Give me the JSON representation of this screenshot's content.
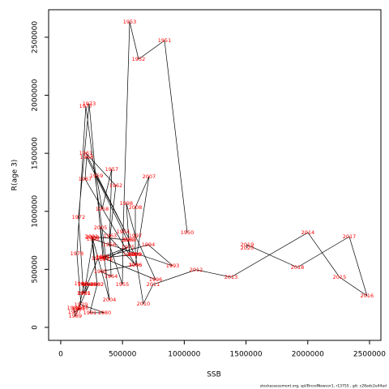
{
  "chart_data": {
    "type": "labeled-path",
    "x_label": "SSB",
    "y_label": "R(age 3)",
    "footer": "stockassessment.org, spl/BrcodNewcor1, r13755 , git: c28adc2e44ad",
    "point_labels": [
      "1950",
      "1951",
      "1952",
      "1953",
      "1954",
      "1955",
      "1956",
      "1957",
      "1958",
      "1959",
      "1960",
      "1961",
      "1962",
      "1963",
      "1964",
      "1965",
      "1966",
      "1967",
      "1968",
      "1969",
      "1970",
      "1971",
      "1972",
      "1973",
      "1974",
      "1975",
      "1976",
      "1977",
      "1978",
      "1979",
      "1980",
      "1981",
      "1982",
      "1983",
      "1984",
      "1985",
      "1986",
      "1987",
      "1988",
      "1989",
      "1990",
      "1991",
      "1992",
      "1993",
      "1994",
      "1995",
      "1996",
      "1997",
      "1998",
      "1999",
      "2000",
      "2001",
      "2002",
      "2003",
      "2004",
      "2005",
      "2006",
      "2007",
      "2008",
      "2009",
      "2010",
      "2011",
      "2012",
      "2013",
      "2014",
      "2015",
      "2016",
      "2017",
      "2018",
      "2019",
      "2020"
    ],
    "x": [
      1024000,
      840000,
      630000,
      558000,
      505000,
      499000,
      394000,
      413000,
      335000,
      289000,
      558000,
      203000,
      446000,
      400000,
      407000,
      322000,
      604000,
      197000,
      210000,
      597000,
      302000,
      184000,
      144000,
      230000,
      341000,
      545000,
      367000,
      203000,
      131000,
      164000,
      354000,
      236000,
      295000,
      164000,
      190000,
      144000,
      171000,
      112000,
      105000,
      118000,
      230000,
      190000,
      262000,
      906000,
      709000,
      335000,
      768000,
      604000,
      531000,
      558000,
      545000,
      249000,
      295000,
      256000,
      394000,
      322000,
      604000,
      715000,
      604000,
      604000,
      669000,
      748000,
      1096000,
      1378000,
      2001000,
      2257000,
      2480000,
      2336000,
      1916000,
      1509000,
      1509000
    ],
    "values": [
      817000,
      2472000,
      2311000,
      2633000,
      824000,
      370000,
      712000,
      1362000,
      1020000,
      1306000,
      754000,
      1501000,
      1222000,
      789000,
      440000,
      482000,
      538000,
      1278000,
      1466000,
      628000,
      594000,
      293000,
      950000,
      1927000,
      608000,
      691000,
      587000,
      1906000,
      635000,
      196000,
      126000,
      126000,
      370000,
      377000,
      370000,
      161000,
      168000,
      133000,
      168000,
      98000,
      370000,
      293000,
      761000,
      531000,
      712000,
      601000,
      412000,
      789000,
      1068000,
      628000,
      754000,
      782000,
      370000,
      775000,
      237000,
      859000,
      538000,
      1299000,
      1034000,
      628000,
      203000,
      370000,
      496000,
      433000,
      817000,
      433000,
      272000,
      782000,
      517000,
      712000,
      684000
    ],
    "label_color": "#ff0000",
    "line_color": "#000000",
    "xlim": [
      -98000,
      2592000
    ],
    "ylim": [
      -112000,
      2737000
    ],
    "xticks": [
      0,
      500000,
      1000000,
      1500000,
      2000000,
      2500000
    ],
    "yticks": [
      0,
      500000,
      1000000,
      1500000,
      2000000,
      2500000
    ]
  }
}
